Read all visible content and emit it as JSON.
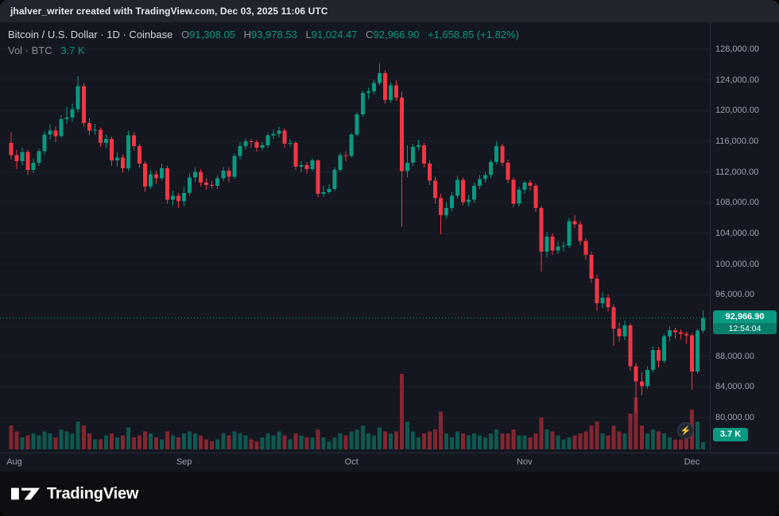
{
  "top_bar": {
    "attribution": "jhalver_writer created with TradingView.com, Dec 03, 2025 11:06 UTC"
  },
  "legend": {
    "title": "Bitcoin / U.S. Dollar · 1D · Coinbase",
    "ohlc": [
      {
        "label": "O",
        "value": "91,308.05"
      },
      {
        "label": "H",
        "value": "93,978.53"
      },
      {
        "label": "L",
        "value": "91,024.47"
      },
      {
        "label": "C",
        "value": "92,966.90"
      }
    ],
    "change": "+1,658.85 (+1.82%)",
    "vol_label": "Vol · BTC",
    "vol_value": "3.7 K"
  },
  "price_scale": {
    "badge": {
      "price": "92,966.90",
      "countdown": "12:54:04"
    },
    "volume_badge": "3.7 K"
  },
  "footer": {
    "brand": "TradingView"
  },
  "colors": {
    "up": "#089981",
    "down": "#F23645",
    "accent": "#089981",
    "axis_text": "#9aa0ab"
  },
  "chart_data": {
    "type": "candlestick",
    "title": "Bitcoin / U.S. Dollar, 1D, Coinbase",
    "symbol": "BTC/USD",
    "interval": "1D",
    "exchange": "Coinbase",
    "current_price": 92966.9,
    "volume_unit": "K BTC",
    "legend_note": "grid off, dark theme, volume overlay at bottom",
    "y_axis": {
      "price_range": [
        75450,
        131520
      ],
      "ticks": [
        128000,
        124000,
        120000,
        116000,
        112000,
        108000,
        104000,
        100000,
        96000,
        92000,
        88000,
        84000,
        80000
      ],
      "step": 4000
    },
    "months": [
      {
        "label": "Aug",
        "index": 0
      },
      {
        "label": "Sep",
        "index": 31
      },
      {
        "label": "Oct",
        "index": 61
      },
      {
        "label": "Nov",
        "index": 92
      },
      {
        "label": "Dec",
        "index": 122
      }
    ],
    "candles": [
      [
        115800,
        117200,
        113600,
        114200
      ],
      [
        114200,
        114900,
        112400,
        113400
      ],
      [
        113400,
        115200,
        112900,
        114600
      ],
      [
        114600,
        114900,
        111600,
        112300
      ],
      [
        112300,
        113800,
        111900,
        113200
      ],
      [
        113200,
        115000,
        112800,
        114700
      ],
      [
        114700,
        117300,
        114300,
        116900
      ],
      [
        116900,
        118200,
        116200,
        117400
      ],
      [
        117400,
        117900,
        115900,
        116700
      ],
      [
        116700,
        119400,
        116400,
        118900
      ],
      [
        118900,
        120500,
        118300,
        119100
      ],
      [
        119100,
        120900,
        118600,
        120200
      ],
      [
        120200,
        124500,
        119800,
        123200
      ],
      [
        123200,
        123600,
        117900,
        118400
      ],
      [
        118400,
        119000,
        116800,
        117400
      ],
      [
        117400,
        118300,
        116900,
        117500
      ],
      [
        117500,
        117800,
        115300,
        115800
      ],
      [
        115800,
        116900,
        115100,
        116300
      ],
      [
        116300,
        116600,
        112800,
        113500
      ],
      [
        113500,
        114600,
        112700,
        113900
      ],
      [
        113900,
        114300,
        111900,
        112500
      ],
      [
        112500,
        117400,
        112100,
        116800
      ],
      [
        116800,
        117200,
        114800,
        115400
      ],
      [
        115400,
        115700,
        112600,
        113100
      ],
      [
        113100,
        113400,
        109400,
        110100
      ],
      [
        110100,
        112300,
        109800,
        111700
      ],
      [
        111700,
        112200,
        110500,
        111200
      ],
      [
        111200,
        113100,
        110900,
        112500
      ],
      [
        112500,
        112800,
        107900,
        108400
      ],
      [
        108400,
        109600,
        107600,
        108900
      ],
      [
        108900,
        109300,
        107300,
        108200
      ],
      [
        108200,
        110100,
        107500,
        109300
      ],
      [
        109300,
        111800,
        108900,
        111300
      ],
      [
        111300,
        112600,
        110700,
        112000
      ],
      [
        112000,
        112400,
        110100,
        110600
      ],
      [
        110600,
        111200,
        109700,
        110300
      ],
      [
        110300,
        110900,
        109900,
        110200
      ],
      [
        110200,
        111600,
        109800,
        111200
      ],
      [
        111200,
        112700,
        110800,
        112200
      ],
      [
        112200,
        112600,
        110700,
        111400
      ],
      [
        111400,
        114400,
        111100,
        114100
      ],
      [
        114100,
        115900,
        113700,
        115400
      ],
      [
        115400,
        116400,
        114900,
        116000
      ],
      [
        116000,
        116300,
        115200,
        115900
      ],
      [
        115900,
        116200,
        114600,
        115200
      ],
      [
        115200,
        115900,
        114800,
        115500
      ],
      [
        115500,
        117100,
        115200,
        116800
      ],
      [
        116800,
        117500,
        116300,
        117000
      ],
      [
        117000,
        117900,
        116500,
        117400
      ],
      [
        117400,
        117700,
        115200,
        115700
      ],
      [
        115700,
        116300,
        115300,
        115800
      ],
      [
        115800,
        116000,
        112300,
        112700
      ],
      [
        112700,
        113400,
        112000,
        112900
      ],
      [
        112900,
        113300,
        111800,
        112400
      ],
      [
        112400,
        113800,
        112100,
        113500
      ],
      [
        113500,
        113700,
        108700,
        109200
      ],
      [
        109200,
        110200,
        108800,
        109400
      ],
      [
        109400,
        110400,
        109100,
        109800
      ],
      [
        109800,
        112600,
        109500,
        112300
      ],
      [
        112300,
        114500,
        112000,
        114200
      ],
      [
        114200,
        114700,
        113400,
        114100
      ],
      [
        114100,
        117100,
        113900,
        116900
      ],
      [
        116900,
        119800,
        116600,
        119500
      ],
      [
        119500,
        122600,
        119200,
        122300
      ],
      [
        122300,
        123000,
        121500,
        122500
      ],
      [
        122500,
        124000,
        122100,
        123600
      ],
      [
        123600,
        126200,
        123300,
        124900
      ],
      [
        124900,
        125300,
        120900,
        121400
      ],
      [
        121400,
        123700,
        121000,
        123300
      ],
      [
        123300,
        123900,
        121300,
        121700
      ],
      [
        121700,
        122500,
        104900,
        112100
      ],
      [
        112100,
        115500,
        111300,
        113200
      ],
      [
        113200,
        115700,
        112800,
        115300
      ],
      [
        115300,
        116200,
        114800,
        115500
      ],
      [
        115500,
        115800,
        112600,
        113100
      ],
      [
        113100,
        113500,
        110300,
        110900
      ],
      [
        110900,
        111400,
        107900,
        108600
      ],
      [
        108600,
        109200,
        103900,
        106400
      ],
      [
        106400,
        108100,
        105900,
        107300
      ],
      [
        107300,
        109400,
        106900,
        108900
      ],
      [
        108900,
        111500,
        108500,
        111000
      ],
      [
        111000,
        111300,
        107700,
        108100
      ],
      [
        108100,
        109000,
        107500,
        108400
      ],
      [
        108400,
        110600,
        108000,
        110200
      ],
      [
        110200,
        111600,
        109800,
        111100
      ],
      [
        111100,
        112000,
        110600,
        111600
      ],
      [
        111600,
        113600,
        111200,
        113300
      ],
      [
        113300,
        116000,
        113000,
        115400
      ],
      [
        115400,
        115700,
        112800,
        113200
      ],
      [
        113200,
        113600,
        110500,
        111000
      ],
      [
        111000,
        111300,
        107400,
        107900
      ],
      [
        107900,
        110100,
        107500,
        109700
      ],
      [
        109700,
        110900,
        109200,
        110600
      ],
      [
        110600,
        111000,
        109600,
        110200
      ],
      [
        110200,
        110500,
        106800,
        107300
      ],
      [
        107300,
        107600,
        99000,
        101600
      ],
      [
        101600,
        104200,
        100900,
        103600
      ],
      [
        103600,
        104000,
        101200,
        101800
      ],
      [
        101800,
        103000,
        101300,
        102300
      ],
      [
        102300,
        102900,
        101700,
        102400
      ],
      [
        102400,
        106000,
        102100,
        105600
      ],
      [
        105600,
        106400,
        104700,
        105200
      ],
      [
        105200,
        105600,
        102500,
        103000
      ],
      [
        103000,
        103400,
        100600,
        101200
      ],
      [
        101200,
        101600,
        97600,
        98100
      ],
      [
        98100,
        98600,
        93900,
        94900
      ],
      [
        94900,
        96300,
        94300,
        95600
      ],
      [
        95600,
        96100,
        93800,
        94400
      ],
      [
        94400,
        94800,
        89300,
        91600
      ],
      [
        91600,
        92400,
        89900,
        90600
      ],
      [
        90600,
        92600,
        90100,
        92000
      ],
      [
        92000,
        92300,
        86100,
        86700
      ],
      [
        86700,
        87100,
        80600,
        84700
      ],
      [
        84700,
        85900,
        82900,
        84100
      ],
      [
        84100,
        86700,
        83800,
        86200
      ],
      [
        86200,
        89300,
        85900,
        88800
      ],
      [
        88800,
        89200,
        86500,
        87400
      ],
      [
        87400,
        90900,
        87100,
        90600
      ],
      [
        90600,
        91900,
        89900,
        91400
      ],
      [
        91400,
        91700,
        90300,
        91100
      ],
      [
        91100,
        91500,
        90200,
        90900
      ],
      [
        90900,
        91200,
        89600,
        90700
      ],
      [
        90700,
        91000,
        83600,
        86000
      ],
      [
        86000,
        91600,
        85700,
        91308.05
      ],
      [
        91308.05,
        93978.53,
        91024.47,
        92966.9
      ]
    ],
    "volumes": [
      12,
      9,
      6,
      7,
      8,
      7,
      9,
      8,
      6,
      10,
      9,
      8,
      14,
      12,
      8,
      5,
      5,
      7,
      8,
      6,
      7,
      11,
      6,
      7,
      9,
      8,
      6,
      5,
      9,
      7,
      6,
      8,
      9,
      8,
      7,
      5,
      4,
      5,
      8,
      7,
      9,
      8,
      7,
      5,
      4,
      6,
      8,
      7,
      9,
      7,
      5,
      8,
      7,
      6,
      6,
      10,
      6,
      4,
      6,
      8,
      7,
      9,
      10,
      12,
      8,
      7,
      11,
      9,
      8,
      9,
      38,
      14,
      9,
      6,
      8,
      9,
      10,
      19,
      8,
      6,
      9,
      8,
      7,
      8,
      7,
      6,
      8,
      10,
      8,
      8,
      10,
      7,
      7,
      6,
      8,
      16,
      10,
      9,
      7,
      5,
      6,
      7,
      8,
      9,
      12,
      14,
      8,
      7,
      12,
      9,
      8,
      18,
      26,
      12,
      8,
      10,
      9,
      8,
      6,
      5,
      5,
      8,
      20,
      14,
      3.7
    ]
  }
}
